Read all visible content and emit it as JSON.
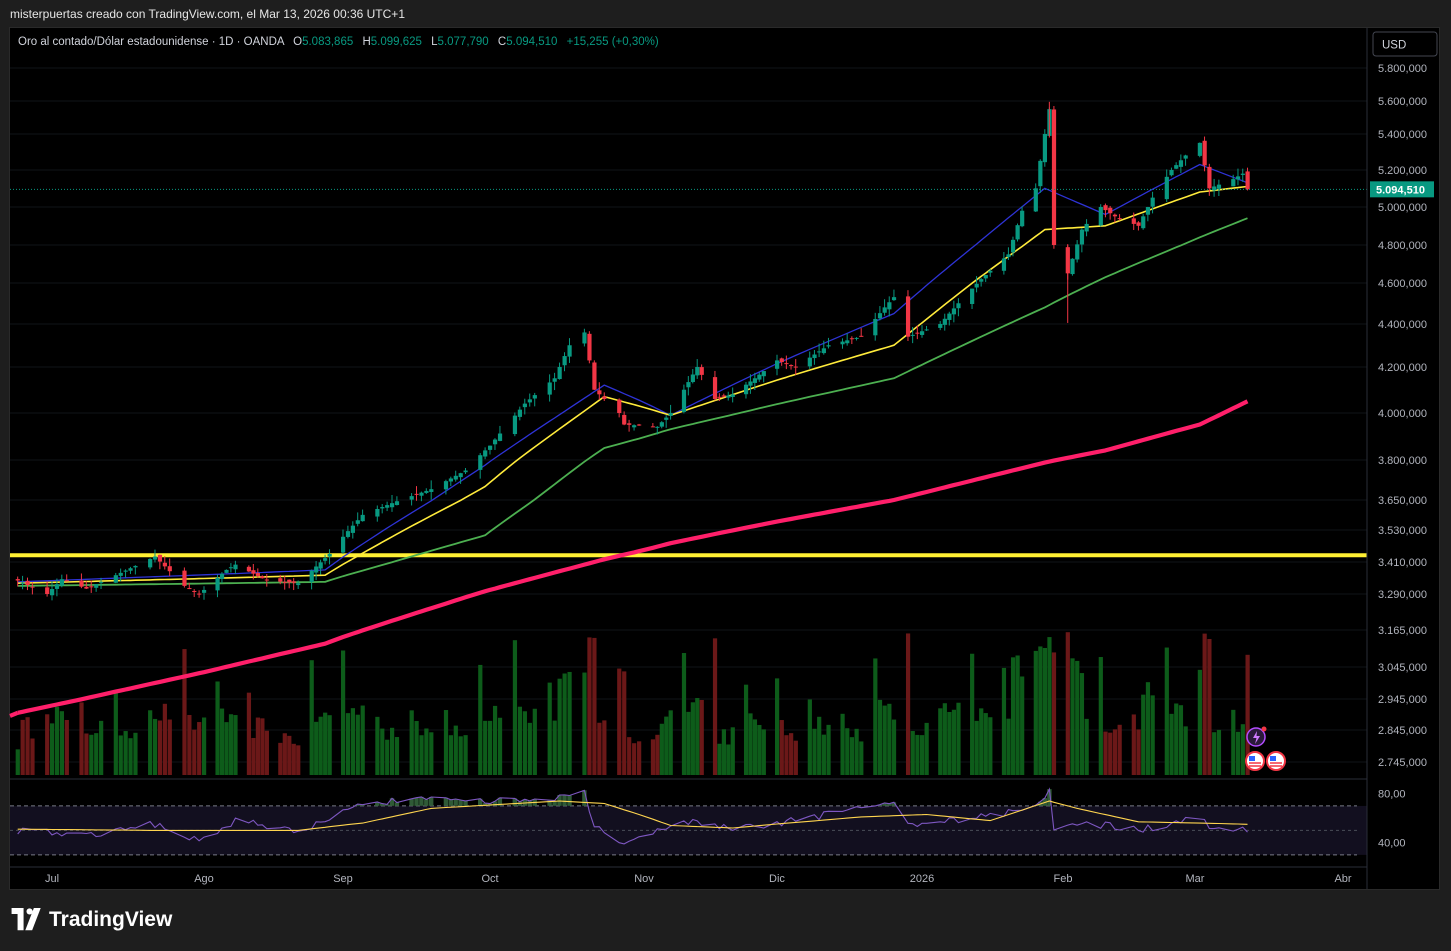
{
  "header": {
    "text": "misterpuertas creado con TradingView.com, el Mar 13, 2026 00:36 UTC+1"
  },
  "legend": {
    "symbol": "Oro al contado/Dólar estadounidense · 1D · OANDA",
    "o_label": "O",
    "o_value": "5.083,865",
    "h_label": "H",
    "h_value": "5.099,625",
    "l_label": "L",
    "l_value": "5.077,790",
    "c_label": "C",
    "c_value": "5.094,510",
    "change": "+15,255 (+0,30%)"
  },
  "currency_button": "USD",
  "brand": {
    "name": "TradingView"
  },
  "colors": {
    "up": "#089981",
    "down": "#f23645",
    "ema_fast": "#2e33d6",
    "ema_mid": "#ffeb3b",
    "ema_slow": "#4caf50",
    "ema_long": "#ff1f6a",
    "hline": "#fff033",
    "rsi": "#7e57c2",
    "rsi_ma": "#ffd54f",
    "vol_up": "#0d5c1a",
    "vol_down": "#6b1818",
    "last_price": "#089981"
  },
  "chart_data": [
    {
      "type": "candlestick",
      "title": "Oro al contado/Dólar estadounidense · 1D · OANDA",
      "x_labels": [
        "Jul",
        "Ago",
        "Sep",
        "Oct",
        "Nov",
        "Dic",
        "2026",
        "Feb",
        "Mar",
        "Abr"
      ],
      "x_range": [
        "2025-06-24",
        "2026-04-10"
      ],
      "scale": "log",
      "y_ticks": [
        "5.800,000",
        "5.600,000",
        "5.400,000",
        "5.200,000",
        "5.000,000",
        "4.800,000",
        "4.600,000",
        "4.400,000",
        "4.200,000",
        "4.000,000",
        "3.800,000",
        "3.650,000",
        "3.530,000",
        "3.410,000",
        "3.290,000",
        "3.165,000",
        "3.045,000",
        "2.945,000",
        "2.845,000",
        "2.745,000"
      ],
      "y_range": [
        2700,
        5950
      ],
      "last_price": 5094.51,
      "last_price_label": "5.094,510",
      "horizontal_line": 3435,
      "anchors": [
        [
          "2025-06-24",
          3340
        ],
        [
          "2025-06-30",
          3290
        ],
        [
          "2025-07-03",
          3345
        ],
        [
          "2025-07-08",
          3310
        ],
        [
          "2025-07-14",
          3360
        ],
        [
          "2025-07-22",
          3430
        ],
        [
          "2025-07-28",
          3320
        ],
        [
          "2025-07-31",
          3290
        ],
        [
          "2025-08-06",
          3380
        ],
        [
          "2025-08-08",
          3400
        ],
        [
          "2025-08-15",
          3340
        ],
        [
          "2025-08-22",
          3330
        ],
        [
          "2025-08-29",
          3440
        ],
        [
          "2025-09-05",
          3590
        ],
        [
          "2025-09-12",
          3645
        ],
        [
          "2025-09-19",
          3690
        ],
        [
          "2025-09-26",
          3760
        ],
        [
          "2025-10-01",
          3860
        ],
        [
          "2025-10-08",
          4040
        ],
        [
          "2025-10-14",
          4150
        ],
        [
          "2025-10-17",
          4300
        ],
        [
          "2025-10-20",
          4360
        ],
        [
          "2025-10-22",
          4100
        ],
        [
          "2025-10-27",
          4000
        ],
        [
          "2025-10-28",
          3950
        ],
        [
          "2025-11-04",
          3940
        ],
        [
          "2025-11-07",
          4000
        ],
        [
          "2025-11-13",
          4200
        ],
        [
          "2025-11-17",
          4060
        ],
        [
          "2025-11-21",
          4080
        ],
        [
          "2025-11-26",
          4150
        ],
        [
          "2025-12-01",
          4230
        ],
        [
          "2025-12-05",
          4200
        ],
        [
          "2025-12-12",
          4300
        ],
        [
          "2025-12-19",
          4340
        ],
        [
          "2025-12-24",
          4480
        ],
        [
          "2025-12-26",
          4530
        ],
        [
          "2025-12-29",
          4340
        ],
        [
          "2026-01-05",
          4400
        ],
        [
          "2026-01-09",
          4500
        ],
        [
          "2026-01-14",
          4620
        ],
        [
          "2026-01-20",
          4750
        ],
        [
          "2026-01-23",
          4980
        ],
        [
          "2026-01-26",
          5100
        ],
        [
          "2026-01-28",
          5400
        ],
        [
          "2026-01-29",
          5550
        ],
        [
          "2026-01-30",
          4800
        ],
        [
          "2026-02-02",
          4650
        ],
        [
          "2026-02-05",
          4880
        ],
        [
          "2026-02-09",
          5000
        ],
        [
          "2026-02-12",
          4950
        ],
        [
          "2026-02-17",
          4900
        ],
        [
          "2026-02-20",
          5050
        ],
        [
          "2026-02-24",
          5200
        ],
        [
          "2026-02-27",
          5280
        ],
        [
          "2026-03-02",
          5350
        ],
        [
          "2026-03-04",
          5100
        ],
        [
          "2026-03-09",
          5150
        ],
        [
          "2026-03-11",
          5180
        ],
        [
          "2026-03-12",
          5094.51
        ]
      ],
      "moving_averages": [
        {
          "anchors": [
            [
              "2025-06-24",
              3335
            ],
            [
              "2025-08-28",
              3380
            ],
            [
              "2025-09-30",
              3780
            ],
            [
              "2025-10-24",
              4120
            ],
            [
              "2025-11-07",
              3990
            ],
            [
              "2025-12-26",
              4450
            ],
            [
              "2026-01-28",
              5100
            ],
            [
              "2026-02-10",
              4960
            ],
            [
              "2026-03-02",
              5230
            ],
            [
              "2026-03-12",
              5130
            ]
          ]
        },
        {
          "anchors": [
            [
              "2025-06-24",
              3330
            ],
            [
              "2025-08-28",
              3360
            ],
            [
              "2025-09-30",
              3700
            ],
            [
              "2025-10-24",
              4070
            ],
            [
              "2025-11-07",
              3990
            ],
            [
              "2025-12-26",
              4300
            ],
            [
              "2026-01-28",
              4880
            ],
            [
              "2026-02-10",
              4900
            ],
            [
              "2026-03-02",
              5080
            ],
            [
              "2026-03-12",
              5110
            ]
          ]
        },
        {
          "anchors": [
            [
              "2025-06-24",
              3320
            ],
            [
              "2025-08-28",
              3335
            ],
            [
              "2025-09-30",
              3510
            ],
            [
              "2025-10-24",
              3850
            ],
            [
              "2025-11-07",
              3930
            ],
            [
              "2025-12-26",
              4150
            ],
            [
              "2026-01-28",
              4480
            ],
            [
              "2026-02-10",
              4630
            ],
            [
              "2026-03-02",
              4840
            ],
            [
              "2026-03-12",
              4940
            ]
          ]
        },
        {
          "anchors": [
            [
              "2025-06-24",
              2900
            ],
            [
              "2025-08-28",
              3120
            ],
            [
              "2025-09-30",
              3300
            ],
            [
              "2025-10-24",
              3420
            ],
            [
              "2025-11-07",
              3480
            ],
            [
              "2025-12-26",
              3650
            ],
            [
              "2026-01-28",
              3790
            ],
            [
              "2026-02-10",
              3840
            ],
            [
              "2026-03-02",
              3950
            ],
            [
              "2026-03-12",
              4050
            ]
          ]
        }
      ]
    },
    {
      "type": "bar",
      "ylim": [
        0,
        1
      ]
    },
    {
      "type": "line",
      "y_ticks": [
        "80,00",
        "40,00"
      ],
      "ylim": [
        25,
        92
      ],
      "band": [
        70,
        30
      ],
      "midline": 50,
      "rsi": [
        [
          "2025-06-24",
          50
        ],
        [
          "2025-07-10",
          47
        ],
        [
          "2025-07-22",
          55
        ],
        [
          "2025-07-31",
          42
        ],
        [
          "2025-08-08",
          58
        ],
        [
          "2025-08-22",
          49
        ],
        [
          "2025-09-05",
          72
        ],
        [
          "2025-09-19",
          75
        ],
        [
          "2025-10-01",
          74
        ],
        [
          "2025-10-08",
          74
        ],
        [
          "2025-10-20",
          80
        ],
        [
          "2025-10-22",
          52
        ],
        [
          "2025-10-28",
          41
        ],
        [
          "2025-11-13",
          58
        ],
        [
          "2025-11-21",
          50
        ],
        [
          "2025-12-05",
          58
        ],
        [
          "2025-12-24",
          72
        ],
        [
          "2025-12-26",
          73
        ],
        [
          "2025-12-29",
          54
        ],
        [
          "2026-01-09",
          58
        ],
        [
          "2026-01-20",
          64
        ],
        [
          "2026-01-26",
          73
        ],
        [
          "2026-01-29",
          82
        ],
        [
          "2026-01-30",
          50
        ],
        [
          "2026-02-05",
          57
        ],
        [
          "2026-02-17",
          50
        ],
        [
          "2026-03-02",
          60
        ],
        [
          "2026-03-04",
          52
        ],
        [
          "2026-03-12",
          51
        ]
      ],
      "rsi_ma": [
        [
          "2025-06-24",
          51
        ],
        [
          "2025-07-22",
          50
        ],
        [
          "2025-08-22",
          50
        ],
        [
          "2025-09-05",
          56
        ],
        [
          "2025-09-19",
          68
        ],
        [
          "2025-10-15",
          74
        ],
        [
          "2025-10-24",
          72
        ],
        [
          "2025-11-07",
          54
        ],
        [
          "2025-11-21",
          52
        ],
        [
          "2025-12-19",
          61
        ],
        [
          "2026-01-02",
          63
        ],
        [
          "2026-01-16",
          58
        ],
        [
          "2026-01-29",
          74
        ],
        [
          "2026-02-04",
          68
        ],
        [
          "2026-02-17",
          57
        ],
        [
          "2026-03-02",
          56
        ],
        [
          "2026-03-12",
          55
        ]
      ]
    }
  ]
}
